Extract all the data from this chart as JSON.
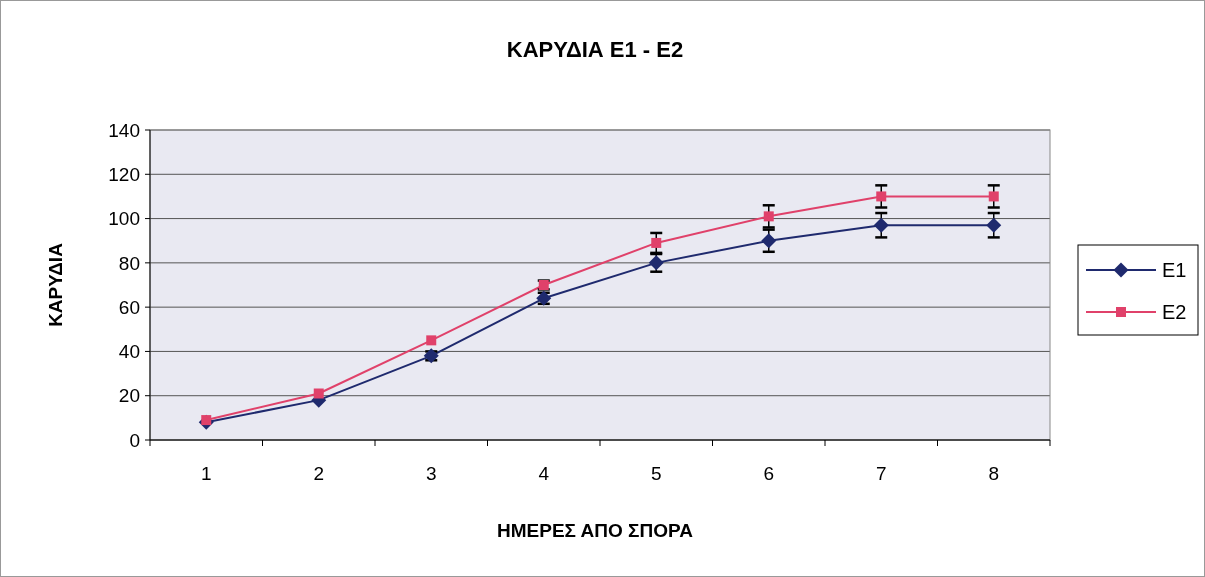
{
  "chart_data": {
    "type": "line",
    "title": "ΚΑΡΥΔΙΑ Ε1 - Ε2",
    "xlabel": "ΗΜΕΡΕΣ ΑΠΟ ΣΠΟΡΑ",
    "ylabel": "ΚΑΡΥΔΙΑ",
    "categories": [
      "1",
      "2",
      "3",
      "4",
      "5",
      "6",
      "7",
      "8"
    ],
    "series": [
      {
        "name": "Ε1",
        "color": "#1f2a6e",
        "marker": "diamond",
        "values": [
          8,
          18,
          38,
          64,
          80,
          90,
          97,
          97
        ],
        "errors": [
          null,
          null,
          2,
          2.5,
          4,
          5,
          5.5,
          5.5
        ]
      },
      {
        "name": "Ε2",
        "color": "#e0416a",
        "marker": "square",
        "values": [
          9,
          21,
          45,
          70,
          89,
          101,
          110,
          110
        ],
        "errors": [
          null,
          null,
          null,
          2,
          4.5,
          5,
          5,
          5
        ]
      }
    ],
    "ylim": [
      0,
      140
    ],
    "yticks": [
      0,
      20,
      40,
      60,
      80,
      100,
      120,
      140
    ],
    "grid": "y",
    "legend": "right"
  }
}
